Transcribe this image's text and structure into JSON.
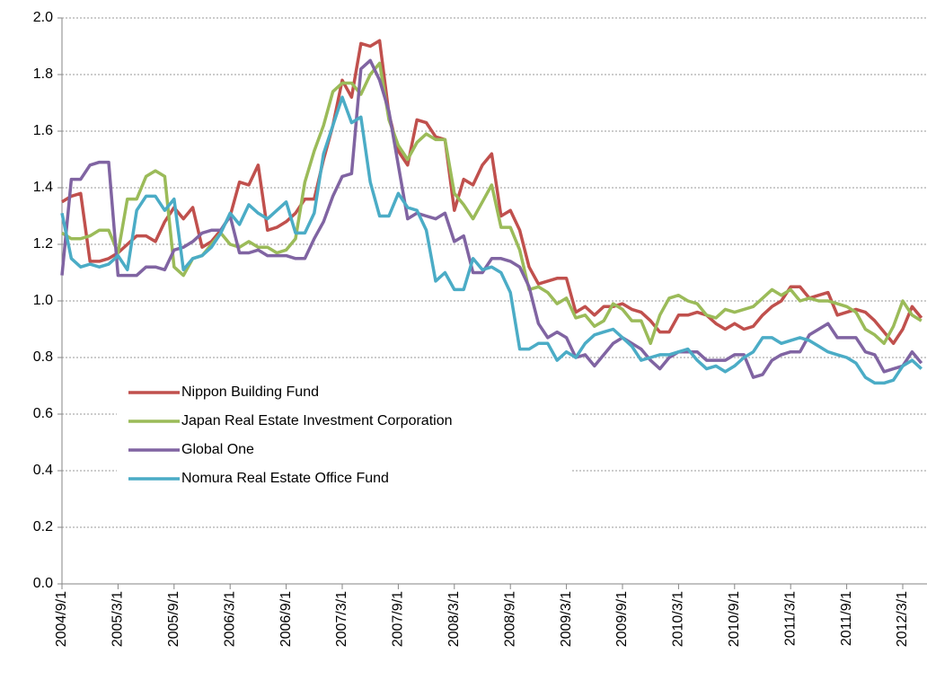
{
  "chart_data": {
    "type": "line",
    "categories": [
      "2004/9/1",
      null,
      null,
      null,
      null,
      null,
      "2005/3/1",
      null,
      null,
      null,
      null,
      null,
      "2005/9/1",
      null,
      null,
      null,
      null,
      null,
      "2006/3/1",
      null,
      null,
      null,
      null,
      null,
      "2006/9/1",
      null,
      null,
      null,
      null,
      null,
      "2007/3/1",
      null,
      null,
      null,
      null,
      null,
      "2007/9/1",
      null,
      null,
      null,
      null,
      null,
      "2008/3/1",
      null,
      null,
      null,
      null,
      null,
      "2008/9/1",
      null,
      null,
      null,
      null,
      null,
      "2009/3/1",
      null,
      null,
      null,
      null,
      null,
      "2009/9/1",
      null,
      null,
      null,
      null,
      null,
      "2010/3/1",
      null,
      null,
      null,
      null,
      null,
      "2010/9/1",
      null,
      null,
      null,
      null,
      null,
      "2011/3/1",
      null,
      null,
      null,
      null,
      null,
      "2011/9/1",
      null,
      null,
      null,
      null,
      null,
      "2012/3/1",
      null,
      null
    ],
    "series": [
      {
        "name": "Nippon Building Fund",
        "color": "#c0504d",
        "values": [
          1.35,
          1.37,
          1.38,
          1.14,
          1.14,
          1.15,
          1.17,
          1.2,
          1.23,
          1.23,
          1.21,
          1.28,
          1.33,
          1.29,
          1.33,
          1.19,
          1.21,
          1.25,
          1.3,
          1.42,
          1.41,
          1.48,
          1.25,
          1.26,
          1.28,
          1.31,
          1.36,
          1.36,
          1.5,
          1.62,
          1.78,
          1.72,
          1.91,
          1.9,
          1.92,
          1.66,
          1.53,
          1.48,
          1.64,
          1.63,
          1.58,
          1.57,
          1.32,
          1.43,
          1.41,
          1.48,
          1.52,
          1.3,
          1.32,
          1.25,
          1.12,
          1.06,
          1.07,
          1.08,
          1.08,
          0.96,
          0.98,
          0.95,
          0.98,
          0.98,
          0.99,
          0.97,
          0.96,
          0.93,
          0.89,
          0.89,
          0.95,
          0.95,
          0.96,
          0.95,
          0.92,
          0.9,
          0.92,
          0.9,
          0.91,
          0.95,
          0.98,
          1.0,
          1.05,
          1.05,
          1.01,
          1.02,
          1.03,
          0.95,
          0.96,
          0.97,
          0.96,
          0.93,
          0.89,
          0.85,
          0.9,
          0.98,
          0.94
        ]
      },
      {
        "name": "Japan Real Estate Investment Corporation",
        "color": "#9bbb59",
        "values": [
          1.24,
          1.22,
          1.22,
          1.23,
          1.25,
          1.25,
          1.17,
          1.36,
          1.36,
          1.44,
          1.46,
          1.44,
          1.12,
          1.09,
          1.15,
          1.16,
          1.2,
          1.24,
          1.2,
          1.19,
          1.21,
          1.19,
          1.19,
          1.17,
          1.18,
          1.22,
          1.42,
          1.53,
          1.62,
          1.74,
          1.77,
          1.77,
          1.73,
          1.8,
          1.84,
          1.64,
          1.55,
          1.5,
          1.56,
          1.59,
          1.57,
          1.57,
          1.38,
          1.34,
          1.29,
          1.35,
          1.41,
          1.26,
          1.26,
          1.18,
          1.04,
          1.05,
          1.03,
          0.99,
          1.01,
          0.94,
          0.95,
          0.91,
          0.93,
          0.99,
          0.97,
          0.93,
          0.93,
          0.85,
          0.95,
          1.01,
          1.02,
          1.0,
          0.99,
          0.95,
          0.94,
          0.97,
          0.96,
          0.97,
          0.98,
          1.01,
          1.04,
          1.02,
          1.04,
          1.0,
          1.01,
          1.0,
          1.0,
          0.99,
          0.98,
          0.96,
          0.9,
          0.88,
          0.85,
          0.91,
          1.0,
          0.95,
          0.93
        ]
      },
      {
        "name": "Global One",
        "color": "#8064a2",
        "values": [
          1.09,
          1.43,
          1.43,
          1.48,
          1.49,
          1.49,
          1.09,
          1.09,
          1.09,
          1.12,
          1.12,
          1.11,
          1.18,
          1.19,
          1.21,
          1.24,
          1.25,
          1.25,
          1.3,
          1.17,
          1.17,
          1.18,
          1.16,
          1.16,
          1.16,
          1.15,
          1.15,
          1.22,
          1.28,
          1.37,
          1.44,
          1.45,
          1.82,
          1.85,
          1.78,
          1.67,
          1.48,
          1.29,
          1.31,
          1.3,
          1.29,
          1.31,
          1.21,
          1.23,
          1.1,
          1.1,
          1.15,
          1.15,
          1.14,
          1.12,
          1.05,
          0.92,
          0.87,
          0.89,
          0.87,
          0.8,
          0.81,
          0.77,
          0.81,
          0.85,
          0.87,
          0.85,
          0.83,
          0.79,
          0.76,
          0.8,
          0.82,
          0.82,
          0.82,
          0.79,
          0.79,
          0.79,
          0.81,
          0.81,
          0.73,
          0.74,
          0.79,
          0.81,
          0.82,
          0.82,
          0.88,
          0.9,
          0.92,
          0.87,
          0.87,
          0.87,
          0.82,
          0.81,
          0.75,
          0.76,
          0.77,
          0.82,
          0.78
        ]
      },
      {
        "name": "Nomura Real Estate Office Fund",
        "color": "#4bacc6",
        "values": [
          1.31,
          1.15,
          1.12,
          1.13,
          1.12,
          1.13,
          1.16,
          1.11,
          1.32,
          1.37,
          1.37,
          1.32,
          1.36,
          1.11,
          1.15,
          1.16,
          1.19,
          1.24,
          1.31,
          1.27,
          1.34,
          1.31,
          1.29,
          1.32,
          1.35,
          1.24,
          1.24,
          1.31,
          1.52,
          1.62,
          1.72,
          1.63,
          1.65,
          1.42,
          1.3,
          1.3,
          1.38,
          1.33,
          1.32,
          1.25,
          1.07,
          1.1,
          1.04,
          1.04,
          1.15,
          1.11,
          1.12,
          1.1,
          1.03,
          0.83,
          0.83,
          0.85,
          0.85,
          0.79,
          0.82,
          0.8,
          0.85,
          0.88,
          0.89,
          0.9,
          0.87,
          0.84,
          0.79,
          0.8,
          0.81,
          0.81,
          0.82,
          0.83,
          0.79,
          0.76,
          0.77,
          0.75,
          0.77,
          0.8,
          0.82,
          0.87,
          0.87,
          0.85,
          0.86,
          0.87,
          0.86,
          0.84,
          0.82,
          0.81,
          0.8,
          0.78,
          0.73,
          0.71,
          0.71,
          0.72,
          0.77,
          0.79,
          0.76
        ]
      }
    ],
    "ylim": [
      0,
      2
    ],
    "yticks": [
      {
        "value": 0,
        "label": "0.0"
      },
      0.2,
      0.4,
      0.6,
      0.8,
      {
        "value": 1,
        "label": "1.0"
      },
      1.2,
      1.4,
      1.6,
      1.8,
      {
        "value": 2,
        "label": "2.0"
      }
    ],
    "grid": true,
    "legend": "lower left"
  }
}
